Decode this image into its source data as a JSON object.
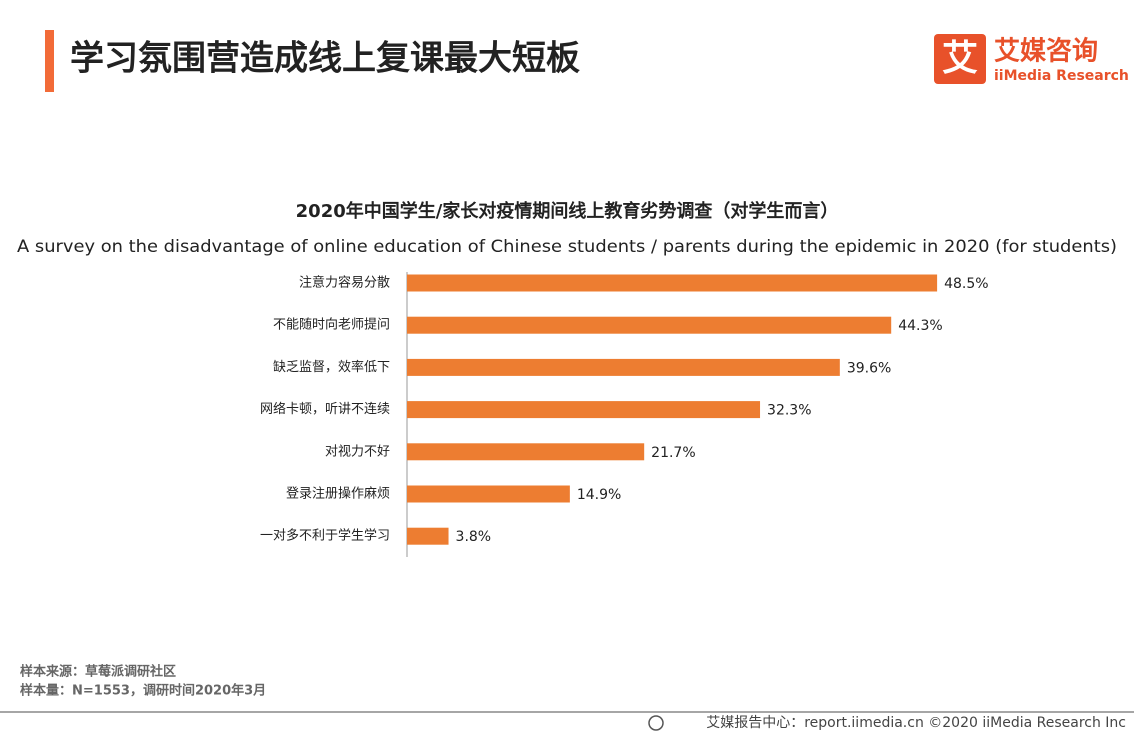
{
  "header": {
    "title": "学习氛围营造成线上复课最大短板",
    "logo_mark": "艾",
    "logo_name": "艾媒咨询",
    "logo_sub": "iiMedia Research"
  },
  "chart_data": {
    "type": "bar",
    "orientation": "horizontal",
    "title": "2020年中国学生/家长对疫情期间线上教育劣势调查（对学生而言）",
    "subtitle": "A survey on the disadvantage of online education of Chinese students / parents during the epidemic in 2020 (for students)",
    "categories": [
      "注意力容易分散",
      "不能随时向老师提问",
      "缺乏监督，效率低下",
      "网络卡顿，听讲不连续",
      "对视力不好",
      "登录注册操作麻烦",
      "一对多不利于学生学习"
    ],
    "values": [
      48.5,
      44.3,
      39.6,
      32.3,
      21.7,
      14.9,
      3.8
    ],
    "value_labels": [
      "48.5%",
      "44.3%",
      "39.6%",
      "32.3%",
      "21.7%",
      "14.9%",
      "3.8%"
    ],
    "color": "#ed7d31"
  },
  "notes": [
    "样本来源：草莓派调研社区",
    "样本量：N=1553，调研时间2020年3月"
  ],
  "footer": "艾媒报告中心：report.iimedia.cn  ©2020  iiMedia Research  Inc"
}
